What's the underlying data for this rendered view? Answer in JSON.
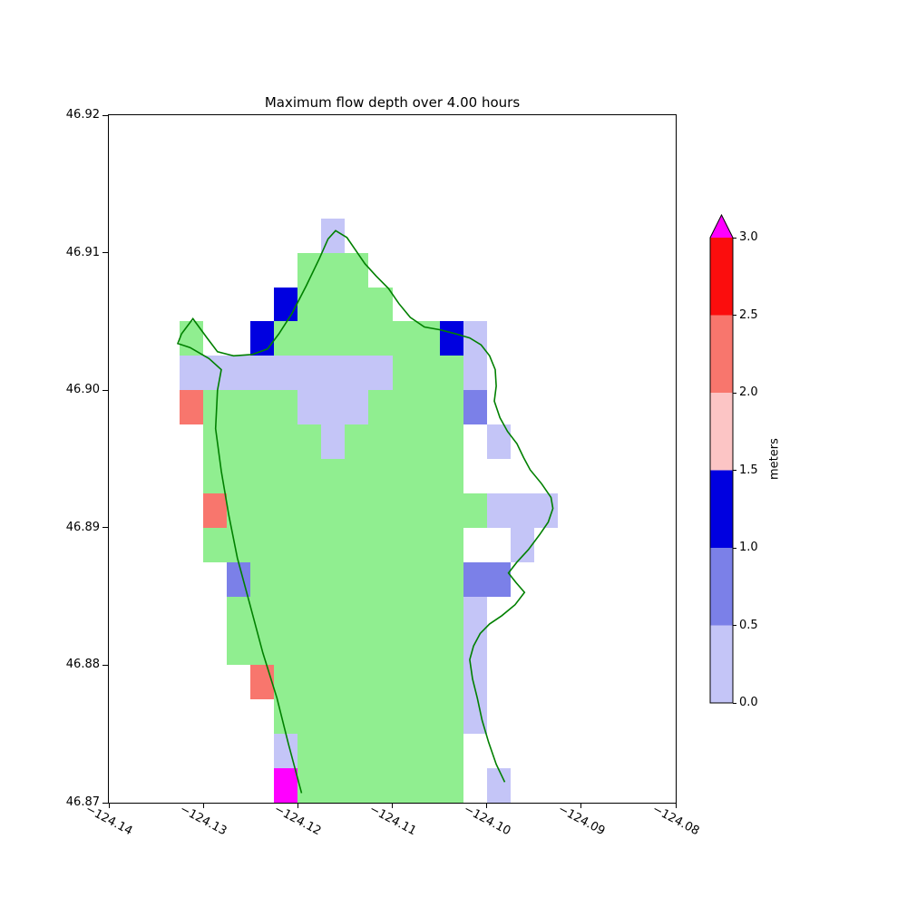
{
  "title": "Maximum flow depth over 4.00 hours",
  "colorbar": {
    "label": "meters",
    "max": 3.0,
    "over_color": "#ff00ff",
    "ticks": [
      {
        "value": 0.0,
        "label": "0.0"
      },
      {
        "value": 0.5,
        "label": "0.5"
      },
      {
        "value": 1.0,
        "label": "1.0"
      },
      {
        "value": 1.5,
        "label": "1.5"
      },
      {
        "value": 2.0,
        "label": "2.0"
      },
      {
        "value": 2.5,
        "label": "2.5"
      },
      {
        "value": 3.0,
        "label": "3.0"
      }
    ],
    "segments": [
      {
        "from": 0.0,
        "to": 0.5,
        "color": "#c4c5f7"
      },
      {
        "from": 0.5,
        "to": 1.0,
        "color": "#7b80e8"
      },
      {
        "from": 1.0,
        "to": 1.5,
        "color": "#0000e0"
      },
      {
        "from": 1.5,
        "to": 2.0,
        "color": "#fcc5c5"
      },
      {
        "from": 2.0,
        "to": 2.5,
        "color": "#f8766d"
      },
      {
        "from": 2.5,
        "to": 3.0,
        "color": "#fb0d0d"
      }
    ]
  },
  "chart_data": {
    "type": "heatmap",
    "title": "Maximum flow depth over 4.00 hours",
    "xlabel": "",
    "ylabel": "",
    "units": "meters",
    "xlim": [
      -124.14,
      -124.08
    ],
    "ylim": [
      46.87,
      46.92
    ],
    "xticks": [
      {
        "value": -124.14,
        "label": "−124.14"
      },
      {
        "value": -124.13,
        "label": "−124.13"
      },
      {
        "value": -124.12,
        "label": "−124.12"
      },
      {
        "value": -124.11,
        "label": "−124.11"
      },
      {
        "value": -124.1,
        "label": "−124.10"
      },
      {
        "value": -124.09,
        "label": "−124.09"
      },
      {
        "value": -124.08,
        "label": "−124.08"
      }
    ],
    "yticks": [
      {
        "value": 46.92,
        "label": "46.92"
      },
      {
        "value": 46.91,
        "label": "46.91"
      },
      {
        "value": 46.9,
        "label": "46.90"
      },
      {
        "value": 46.89,
        "label": "46.89"
      },
      {
        "value": 46.88,
        "label": "46.88"
      },
      {
        "value": 46.87,
        "label": "46.87"
      }
    ],
    "cell_size_deg": 0.0025,
    "palette": {
      "g": {
        "color": "#90ee90",
        "label": "land / zero depth"
      },
      "a": {
        "color": "#c4c5f7",
        "label": "0.0–0.5 m"
      },
      "b": {
        "color": "#7b80e8",
        "label": "0.5–1.0 m"
      },
      "B": {
        "color": "#0000e0",
        "label": "1.0–1.5 m"
      },
      "p": {
        "color": "#fcc5c5",
        "label": "1.5–2.0 m"
      },
      "s": {
        "color": "#f8766d",
        "label": "2.0–2.5 m"
      },
      "r": {
        "color": "#fb0d0d",
        "label": "2.5–3.0 m"
      },
      "m": {
        "color": "#ff00ff",
        "label": "> 3.0 m"
      }
    },
    "grid": {
      "cols": 24,
      "rows": 20,
      "origin_lon": -124.14,
      "origin_lat_top": 46.92,
      "rows_data": [
        "........................",
        "........................",
        "........................",
        ".........a..............",
        "........ggg.............",
        ".......Bgggg............",
        "...g..BgggggggBa........",
        "...aaaaaaaaaggga........",
        "...sggggaaaggggb........",
        "....gggggaggggg.a.......",
        "....ggggggggggg.........",
        "....sgggggggggggaaa.....",
        "....ggggggggggg..a......",
        ".....bgggggggggbb.......",
        ".....gggggggggga........",
        ".....gggggggggga........",
        "......sgggggggga........",
        ".......gggggggga........",
        ".......aggggggg.........",
        ".......mggggggg.a......."
      ]
    },
    "coastline_color": "#008000",
    "coastline": [
      [
        -124.1196,
        46.8707
      ],
      [
        -124.121,
        46.8743
      ],
      [
        -124.1222,
        46.8776
      ],
      [
        -124.1237,
        46.8809
      ],
      [
        -124.1251,
        46.8845
      ],
      [
        -124.1264,
        46.8878
      ],
      [
        -124.1273,
        46.8909
      ],
      [
        -124.1281,
        46.8941
      ],
      [
        -124.1287,
        46.8972
      ],
      [
        -124.1285,
        46.9
      ],
      [
        -124.1281,
        46.9015
      ],
      [
        -124.1294,
        46.9023
      ],
      [
        -124.1314,
        46.9031
      ],
      [
        -124.1327,
        46.9034
      ],
      [
        -124.1323,
        46.9041
      ],
      [
        -124.1311,
        46.9052
      ],
      [
        -124.1296,
        46.9038
      ],
      [
        -124.1285,
        46.9028
      ],
      [
        -124.1268,
        46.9025
      ],
      [
        -124.1248,
        46.9026
      ],
      [
        -124.1232,
        46.903
      ],
      [
        -124.122,
        46.9041
      ],
      [
        -124.1206,
        46.9056
      ],
      [
        -124.1191,
        46.9076
      ],
      [
        -124.1177,
        46.9096
      ],
      [
        -124.1168,
        46.911
      ],
      [
        -124.116,
        46.9116
      ],
      [
        -124.1148,
        46.9111
      ],
      [
        -124.1139,
        46.9102
      ],
      [
        -124.1129,
        46.9092
      ],
      [
        -124.1117,
        46.9083
      ],
      [
        -124.1104,
        46.9074
      ],
      [
        -124.1093,
        46.9063
      ],
      [
        -124.1081,
        46.9053
      ],
      [
        -124.1066,
        46.9046
      ],
      [
        -124.105,
        46.9044
      ],
      [
        -124.1033,
        46.9041
      ],
      [
        -124.1018,
        46.9038
      ],
      [
        -124.1006,
        46.9033
      ],
      [
        -124.0997,
        46.9025
      ],
      [
        -124.0991,
        46.9015
      ],
      [
        -124.099,
        46.9003
      ],
      [
        -124.0992,
        46.8992
      ],
      [
        -124.0986,
        46.898
      ],
      [
        -124.0978,
        46.897
      ],
      [
        -124.0968,
        46.8961
      ],
      [
        -124.0961,
        46.8951
      ],
      [
        -124.0954,
        46.8942
      ],
      [
        -124.0942,
        46.8932
      ],
      [
        -124.0932,
        46.8922
      ],
      [
        -124.093,
        46.8914
      ],
      [
        -124.0935,
        46.8904
      ],
      [
        -124.0944,
        46.8895
      ],
      [
        -124.0956,
        46.8884
      ],
      [
        -124.0968,
        46.8875
      ],
      [
        -124.0977,
        46.8867
      ],
      [
        -124.0969,
        46.886
      ],
      [
        -124.096,
        46.8853
      ],
      [
        -124.097,
        46.8844
      ],
      [
        -124.0984,
        46.8836
      ],
      [
        -124.0997,
        46.883
      ],
      [
        -124.1007,
        46.8823
      ],
      [
        -124.1014,
        46.8814
      ],
      [
        -124.1018,
        46.8804
      ],
      [
        -124.1015,
        46.879
      ],
      [
        -124.101,
        46.8776
      ],
      [
        -124.1005,
        46.876
      ],
      [
        -124.0998,
        46.8744
      ],
      [
        -124.099,
        46.8728
      ],
      [
        -124.0981,
        46.8715
      ]
    ]
  }
}
